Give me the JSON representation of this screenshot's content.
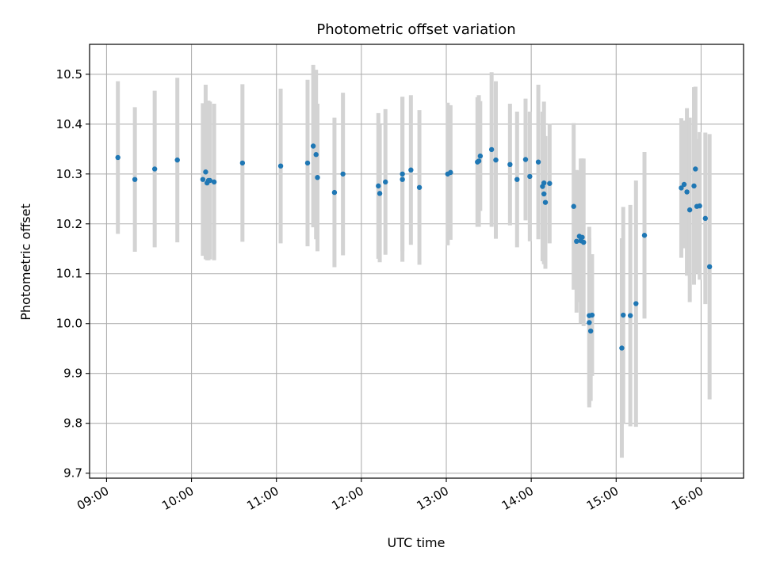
{
  "chart_data": {
    "type": "scatter",
    "title": "Photometric offset variation",
    "xlabel": "UTC time",
    "ylabel": "Photometric offset",
    "grid": true,
    "xlim": [
      "08:48",
      "16:30"
    ],
    "ylim": [
      9.69,
      10.56
    ],
    "xticks": [
      "09:00",
      "10:00",
      "11:00",
      "12:00",
      "13:00",
      "14:00",
      "15:00",
      "16:00"
    ],
    "yticks": [
      "9.7",
      "9.8",
      "9.9",
      "10.0",
      "10.1",
      "10.2",
      "10.3",
      "10.4",
      "10.5"
    ],
    "colors": {
      "point": "#1f77b4",
      "errorbar": "#d3d3d3",
      "grid": "#b0b0b0"
    },
    "series": [
      {
        "x": [
          "09:08",
          "09:20",
          "09:34",
          "09:50",
          "10:08",
          "10:10",
          "10:11",
          "10:12",
          "10:13",
          "10:16",
          "10:36",
          "11:03",
          "11:22",
          "11:26",
          "11:28",
          "11:29",
          "11:41",
          "11:47",
          "12:12",
          "12:13",
          "12:17",
          "12:29",
          "12:29",
          "12:35",
          "12:41",
          "13:01",
          "13:03",
          "13:22",
          "13:23",
          "13:24",
          "13:32",
          "13:35",
          "13:45",
          "13:50",
          "13:56",
          "13:59",
          "14:05",
          "14:08",
          "14:09",
          "14:09",
          "14:10",
          "14:13",
          "14:30",
          "14:32",
          "14:34",
          "14:35",
          "14:36",
          "14:37",
          "14:41",
          "14:41",
          "14:42",
          "14:43",
          "15:04",
          "15:05",
          "15:10",
          "15:14",
          "15:20",
          "15:46",
          "15:48",
          "15:50",
          "15:52",
          "15:55",
          "15:56",
          "15:57",
          "15:59",
          "16:03",
          "16:06"
        ],
        "y": [
          10.333,
          10.289,
          10.31,
          10.328,
          10.289,
          10.304,
          10.282,
          10.287,
          10.287,
          10.284,
          10.322,
          10.316,
          10.322,
          10.356,
          10.339,
          10.293,
          10.263,
          10.3,
          10.276,
          10.261,
          10.284,
          10.289,
          10.3,
          10.308,
          10.273,
          10.3,
          10.303,
          10.324,
          10.326,
          10.336,
          10.349,
          10.328,
          10.319,
          10.289,
          10.329,
          10.295,
          10.324,
          10.275,
          10.282,
          10.26,
          10.243,
          10.281,
          10.235,
          10.165,
          10.175,
          10.166,
          10.173,
          10.163,
          10.002,
          10.016,
          9.985,
          10.017,
          9.951,
          10.017,
          10.016,
          10.04,
          10.177,
          10.272,
          10.279,
          10.264,
          10.228,
          10.276,
          10.31,
          10.235,
          10.236,
          10.211,
          10.114
        ],
        "err": [
          0.153,
          0.145,
          0.157,
          0.165,
          0.153,
          0.175,
          0.155,
          0.16,
          0.158,
          0.157,
          0.158,
          0.155,
          0.167,
          0.163,
          0.17,
          0.148,
          0.15,
          0.163,
          0.146,
          0.138,
          0.146,
          0.165,
          0.155,
          0.15,
          0.155,
          0.143,
          0.135,
          0.13,
          0.132,
          0.11,
          0.155,
          0.158,
          0.122,
          0.136,
          0.122,
          0.13,
          0.155,
          0.15,
          0.163,
          0.135,
          0.133,
          0.12,
          0.167,
          0.143,
          0.132,
          0.165,
          0.158,
          0.168,
          0.17,
          0.178,
          0.14,
          0.122,
          0.22,
          0.217,
          0.222,
          0.247,
          0.167,
          0.14,
          0.128,
          0.168,
          0.185,
          0.198,
          0.165,
          0.135,
          0.148,
          0.172,
          0.266
        ]
      }
    ]
  }
}
